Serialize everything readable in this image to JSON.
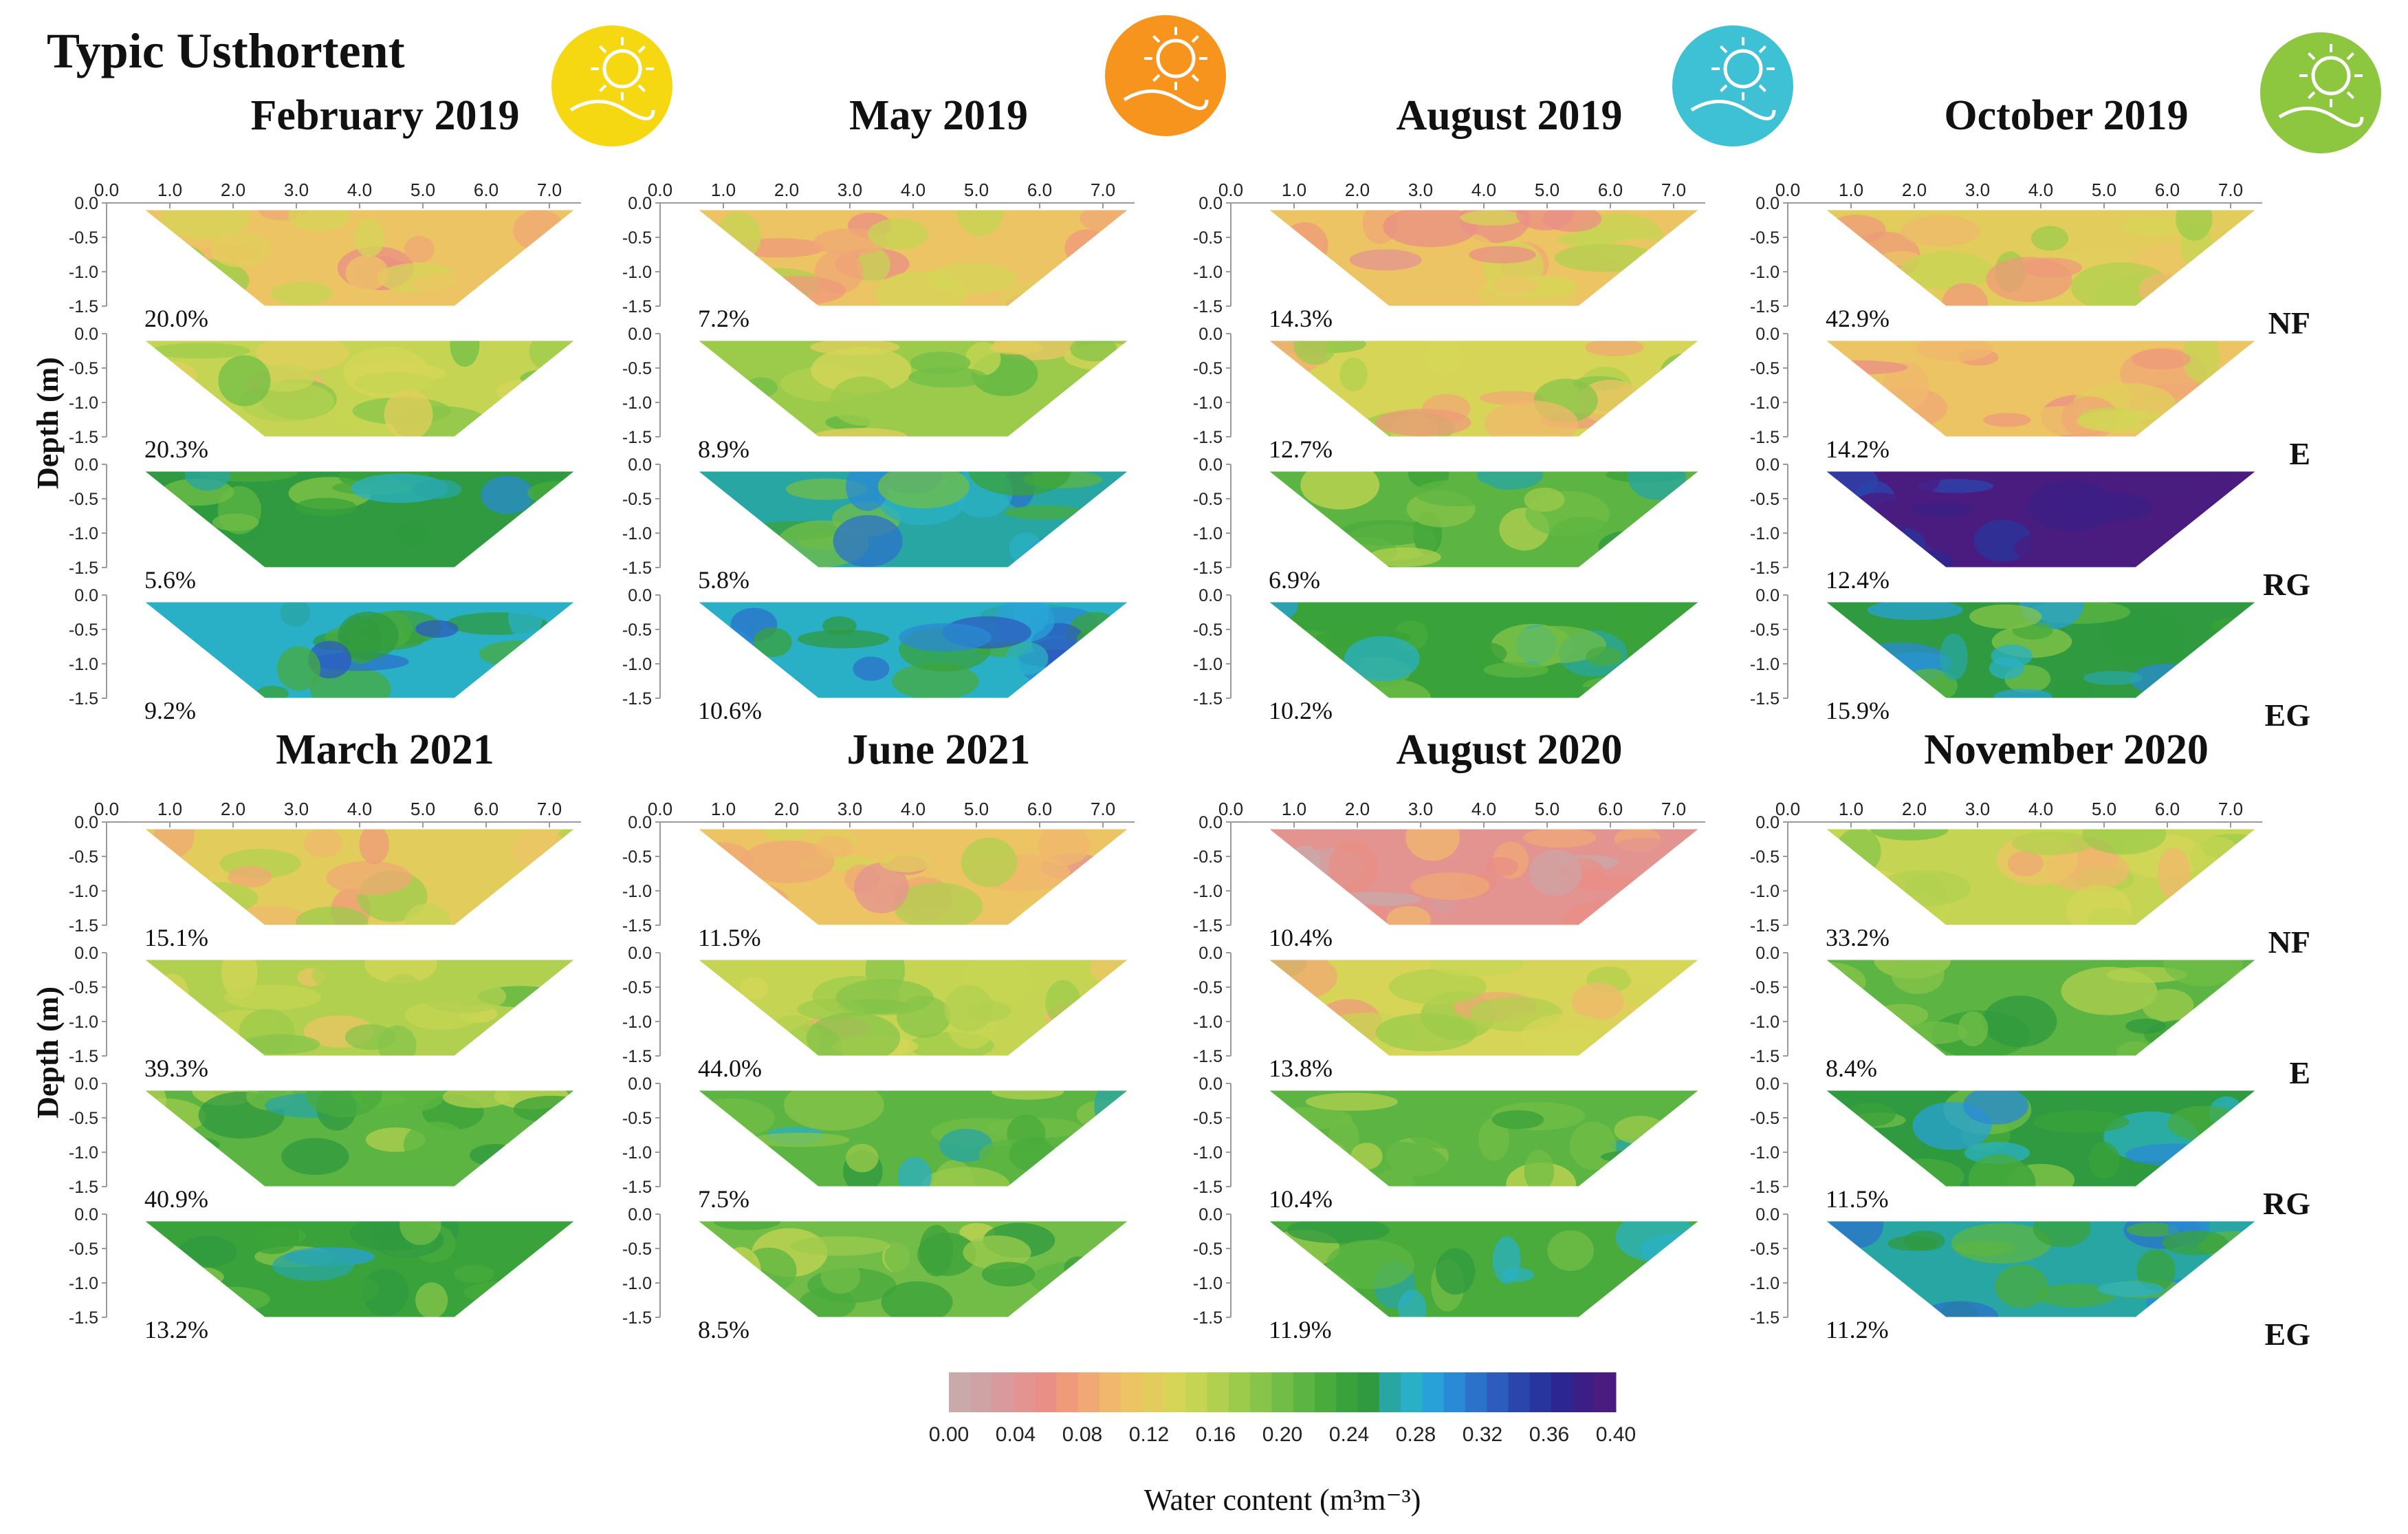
{
  "chart_data": {
    "type": "heatmap",
    "title": "Typic Usthortent",
    "xaxis": {
      "ticks": [
        "0.0",
        "1.0",
        "2.0",
        "3.0",
        "4.0",
        "5.0",
        "6.0",
        "7.0"
      ]
    },
    "yaxis": {
      "label": "Depth (m)",
      "ticks": [
        "0.0",
        "-0.5",
        "-1.0",
        "-1.5"
      ]
    },
    "treatments": [
      "NF",
      "E",
      "RG",
      "EG"
    ],
    "colorbar": {
      "label": "Water content (m³m⁻³)",
      "ticks": [
        "0.00",
        "0.04",
        "0.08",
        "0.12",
        "0.16",
        "0.20",
        "0.24",
        "0.28",
        "0.32",
        "0.36",
        "0.40"
      ],
      "range": [
        0,
        0.4
      ],
      "colors": [
        "#c9a9a9",
        "#cfa3a4",
        "#d89a9c",
        "#e39490",
        "#ea8f86",
        "#ef9a7b",
        "#f0a874",
        "#f0b86c",
        "#ecc464",
        "#e2cd5c",
        "#d6d557",
        "#c5d553",
        "#b1d04f",
        "#9ccb4b",
        "#87c449",
        "#72bd47",
        "#5cb542",
        "#48ab3c",
        "#3aa23a",
        "#2f9a3f",
        "#28a6a4",
        "#2ab0c6",
        "#28a1d8",
        "#2a8ad6",
        "#2b72cb",
        "#2c5cbd",
        "#2a46ad",
        "#28359e",
        "#2c2690",
        "#3c1f86",
        "#4a1c80"
      ]
    },
    "panels": [
      {
        "label": "February 2019",
        "icon": "sun-icon",
        "icon_color": "#f6d812",
        "values": [
          {
            "treatment": "NF",
            "mean": 0.11,
            "percent": "20.0%"
          },
          {
            "treatment": "E",
            "mean": 0.15,
            "percent": "20.3%"
          },
          {
            "treatment": "RG",
            "mean": 0.25,
            "percent": "5.6%"
          },
          {
            "treatment": "EG",
            "mean": 0.28,
            "percent": "9.2%"
          }
        ]
      },
      {
        "label": "May 2019",
        "icon": "leaf-rain-icon",
        "icon_color": "#f7941e",
        "values": [
          {
            "treatment": "NF",
            "mean": 0.11,
            "percent": "7.2%"
          },
          {
            "treatment": "E",
            "mean": 0.17,
            "percent": "8.9%"
          },
          {
            "treatment": "RG",
            "mean": 0.26,
            "percent": "5.8%"
          },
          {
            "treatment": "EG",
            "mean": 0.28,
            "percent": "10.6%"
          }
        ]
      },
      {
        "label": "August 2019",
        "icon": "snowflake-wind-icon",
        "icon_color": "#3fc1d5",
        "values": [
          {
            "treatment": "NF",
            "mean": 0.1,
            "percent": "14.3%"
          },
          {
            "treatment": "E",
            "mean": 0.13,
            "percent": "12.7%"
          },
          {
            "treatment": "RG",
            "mean": 0.21,
            "percent": "6.9%"
          },
          {
            "treatment": "EG",
            "mean": 0.24,
            "percent": "10.2%"
          }
        ]
      },
      {
        "label": "October 2019",
        "icon": "plant-sun-icon",
        "icon_color": "#8dc63f",
        "values": [
          {
            "treatment": "NF",
            "mean": 0.12,
            "percent": "42.9%"
          },
          {
            "treatment": "E",
            "mean": 0.11,
            "percent": "14.2%"
          },
          {
            "treatment": "RG",
            "mean": 0.4,
            "percent": "12.4%"
          },
          {
            "treatment": "EG",
            "mean": 0.25,
            "percent": "15.9%"
          }
        ]
      },
      {
        "label": "March 2021",
        "values": [
          {
            "treatment": "NF",
            "mean": 0.12,
            "percent": "15.1%"
          },
          {
            "treatment": "E",
            "mean": 0.16,
            "percent": "39.3%"
          },
          {
            "treatment": "RG",
            "mean": 0.21,
            "percent": "40.9%"
          },
          {
            "treatment": "EG",
            "mean": 0.24,
            "percent": "13.2%"
          }
        ]
      },
      {
        "label": "June 2021",
        "values": [
          {
            "treatment": "NF",
            "mean": 0.1,
            "percent": "11.5%"
          },
          {
            "treatment": "E",
            "mean": 0.14,
            "percent": "44.0%"
          },
          {
            "treatment": "RG",
            "mean": 0.22,
            "percent": "7.5%"
          },
          {
            "treatment": "EG",
            "mean": 0.2,
            "percent": "8.5%"
          }
        ]
      },
      {
        "label": "August 2020",
        "values": [
          {
            "treatment": "NF",
            "mean": 0.04,
            "percent": "10.4%"
          },
          {
            "treatment": "E",
            "mean": 0.13,
            "percent": "13.8%"
          },
          {
            "treatment": "RG",
            "mean": 0.21,
            "percent": "10.4%"
          },
          {
            "treatment": "EG",
            "mean": 0.23,
            "percent": "11.9%"
          }
        ]
      },
      {
        "label": "November 2020",
        "values": [
          {
            "treatment": "NF",
            "mean": 0.14,
            "percent": "33.2%"
          },
          {
            "treatment": "E",
            "mean": 0.21,
            "percent": "8.4%"
          },
          {
            "treatment": "RG",
            "mean": 0.25,
            "percent": "11.5%"
          },
          {
            "treatment": "EG",
            "mean": 0.27,
            "percent": "11.2%"
          }
        ]
      }
    ]
  }
}
